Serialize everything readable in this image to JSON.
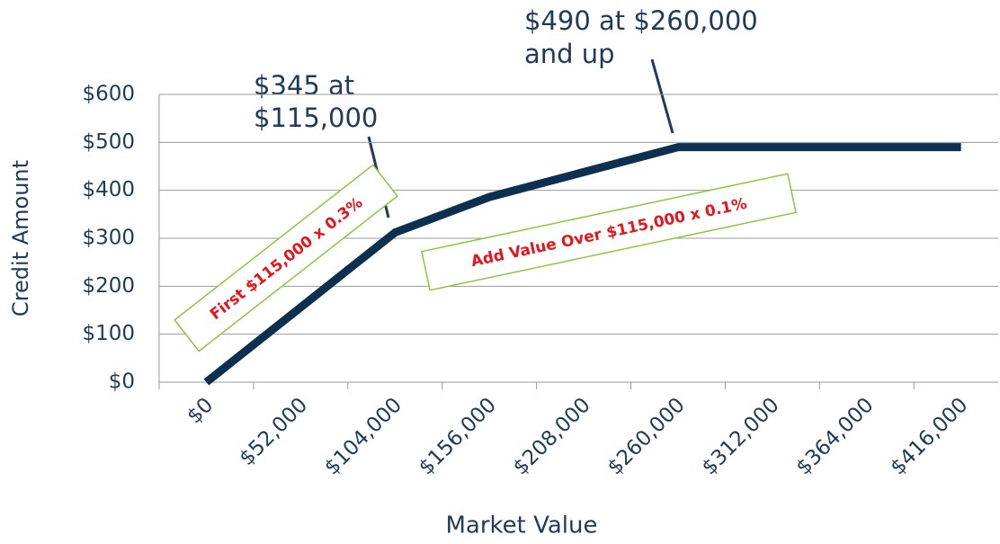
{
  "chart_data": {
    "type": "line",
    "x_label": "Market Value",
    "y_label": "Credit Amount",
    "categories": [
      "$0",
      "$52,000",
      "$104,000",
      "$156,000",
      "$208,000",
      "$260,000",
      "$312,000",
      "$364,000",
      "$416,000"
    ],
    "series": [
      {
        "name": "Credit",
        "color": "#0d2f50",
        "values": [
          0,
          156,
          312,
          386,
          438,
          490,
          490,
          490,
          490
        ]
      }
    ],
    "ylim": [
      0,
      600
    ],
    "yticks": [
      {
        "value": 0,
        "label": "$0"
      },
      {
        "value": 100,
        "label": "$100"
      },
      {
        "value": 200,
        "label": "$200"
      },
      {
        "value": 300,
        "label": "$300"
      },
      {
        "value": 400,
        "label": "$400"
      },
      {
        "value": 500,
        "label": "$500"
      },
      {
        "value": 600,
        "label": "$600"
      }
    ],
    "grid": true,
    "annotations": [
      {
        "text": [
          "$345 at",
          "$115,000"
        ]
      },
      {
        "text": [
          "$490 at $260,000",
          "and up"
        ]
      },
      {
        "text": "First $115,000 x 0.3%"
      },
      {
        "text": "Add Value Over $115,000 x 0.1%"
      }
    ]
  }
}
